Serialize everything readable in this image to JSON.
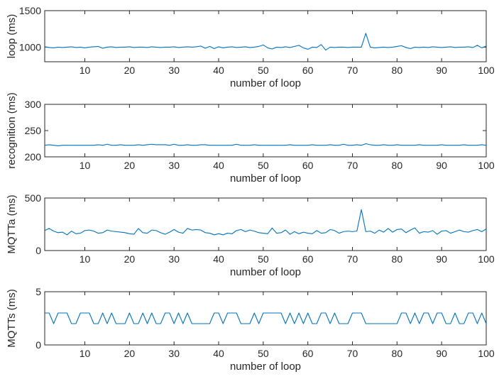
{
  "chart_data": [
    {
      "type": "line",
      "ylabel": "loop (ms)",
      "xlabel": "number of loop",
      "xlim": [
        1,
        100
      ],
      "ylim": [
        800,
        1500
      ],
      "yticks": [
        1000,
        1500
      ],
      "xticks": [
        10,
        20,
        30,
        40,
        50,
        60,
        70,
        80,
        90,
        100
      ],
      "grid": false,
      "color": "#0072BD",
      "series": [
        {
          "x": [
            1,
            2,
            3,
            4,
            5,
            6,
            7,
            8,
            9,
            10,
            11,
            12,
            13,
            14,
            15,
            16,
            17,
            18,
            19,
            20,
            21,
            22,
            23,
            24,
            25,
            26,
            27,
            28,
            29,
            30,
            31,
            32,
            33,
            34,
            35,
            36,
            37,
            38,
            39,
            40,
            41,
            42,
            43,
            44,
            45,
            46,
            47,
            48,
            49,
            50,
            51,
            52,
            53,
            54,
            55,
            56,
            57,
            58,
            59,
            60,
            61,
            62,
            63,
            64,
            65,
            66,
            67,
            68,
            69,
            70,
            71,
            72,
            73,
            74,
            75,
            76,
            77,
            78,
            79,
            80,
            81,
            82,
            83,
            84,
            85,
            86,
            87,
            88,
            89,
            90,
            91,
            92,
            93,
            94,
            95,
            96,
            97,
            98,
            99,
            100
          ],
          "values": [
            1005,
            995,
            990,
            1000,
            995,
            1000,
            1005,
            995,
            1000,
            990,
            1000,
            1005,
            1010,
            985,
            1000,
            1005,
            995,
            1000,
            1000,
            1005,
            995,
            1000,
            1000,
            995,
            1005,
            1000,
            995,
            1000,
            1000,
            1005,
            995,
            1000,
            1005,
            1000,
            1005,
            1015,
            985,
            1010,
            980,
            1005,
            990,
            1000,
            1005,
            995,
            1000,
            1005,
            995,
            1000,
            1010,
            1030,
            990,
            975,
            1000,
            995,
            1005,
            995,
            1010,
            1025,
            990,
            970,
            1000,
            995,
            1035,
            960,
            1000,
            995,
            1000,
            1000,
            995,
            1000,
            1000,
            1000,
            1190,
            1000,
            990,
            995,
            1000,
            995,
            1000,
            1010,
            1020,
            995,
            980,
            1000,
            995,
            1000,
            995,
            1005,
            1000,
            995,
            1000,
            1005,
            995,
            1000,
            1000,
            1005,
            995,
            1025,
            990,
            1015
          ]
        }
      ]
    },
    {
      "type": "line",
      "ylabel": "recognition (ms)",
      "xlabel": "number of loop",
      "xlim": [
        1,
        100
      ],
      "ylim": [
        200,
        300
      ],
      "yticks": [
        200,
        250,
        300
      ],
      "xticks": [
        10,
        20,
        30,
        40,
        50,
        60,
        70,
        80,
        90,
        100
      ],
      "grid": false,
      "color": "#0072BD",
      "series": [
        {
          "x": [
            1,
            2,
            3,
            4,
            5,
            6,
            7,
            8,
            9,
            10,
            11,
            12,
            13,
            14,
            15,
            16,
            17,
            18,
            19,
            20,
            21,
            22,
            23,
            24,
            25,
            26,
            27,
            28,
            29,
            30,
            31,
            32,
            33,
            34,
            35,
            36,
            37,
            38,
            39,
            40,
            41,
            42,
            43,
            44,
            45,
            46,
            47,
            48,
            49,
            50,
            51,
            52,
            53,
            54,
            55,
            56,
            57,
            58,
            59,
            60,
            61,
            62,
            63,
            64,
            65,
            66,
            67,
            68,
            69,
            70,
            71,
            72,
            73,
            74,
            75,
            76,
            77,
            78,
            79,
            80,
            81,
            82,
            83,
            84,
            85,
            86,
            87,
            88,
            89,
            90,
            91,
            92,
            93,
            94,
            95,
            96,
            97,
            98,
            99,
            100
          ],
          "values": [
            222,
            223,
            222,
            221,
            222,
            222,
            222,
            222,
            222,
            222,
            222,
            222,
            223,
            222,
            224,
            222,
            222,
            223,
            222,
            222,
            222,
            223,
            222,
            223,
            224,
            223,
            223,
            223,
            222,
            224,
            222,
            222,
            223,
            222,
            222,
            223,
            223,
            222,
            222,
            222,
            222,
            222,
            222,
            224,
            222,
            222,
            222,
            223,
            222,
            222,
            222,
            222,
            222,
            222,
            222,
            223,
            222,
            222,
            222,
            222,
            223,
            222,
            222,
            222,
            223,
            222,
            222,
            224,
            222,
            222,
            223,
            222,
            225,
            223,
            222,
            222,
            223,
            222,
            222,
            223,
            222,
            222,
            222,
            222,
            223,
            222,
            222,
            222,
            222,
            223,
            222,
            222,
            222,
            222,
            223,
            222,
            222,
            222,
            223,
            222
          ]
        }
      ]
    },
    {
      "type": "line",
      "ylabel": "MQTTa (ms)",
      "xlabel": "number of loop",
      "xlim": [
        1,
        100
      ],
      "ylim": [
        0,
        500
      ],
      "yticks": [
        0,
        500
      ],
      "xticks": [
        10,
        20,
        30,
        40,
        50,
        60,
        70,
        80,
        90,
        100
      ],
      "grid": false,
      "color": "#0072BD",
      "series": [
        {
          "x": [
            1,
            2,
            3,
            4,
            5,
            6,
            7,
            8,
            9,
            10,
            11,
            12,
            13,
            14,
            15,
            16,
            17,
            18,
            19,
            20,
            21,
            22,
            23,
            24,
            25,
            26,
            27,
            28,
            29,
            30,
            31,
            32,
            33,
            34,
            35,
            36,
            37,
            38,
            39,
            40,
            41,
            42,
            43,
            44,
            45,
            46,
            47,
            48,
            49,
            50,
            51,
            52,
            53,
            54,
            55,
            56,
            57,
            58,
            59,
            60,
            61,
            62,
            63,
            64,
            65,
            66,
            67,
            68,
            69,
            70,
            71,
            72,
            73,
            74,
            75,
            76,
            77,
            78,
            79,
            80,
            81,
            82,
            83,
            84,
            85,
            86,
            87,
            88,
            89,
            90,
            91,
            92,
            93,
            94,
            95,
            96,
            97,
            98,
            99,
            100
          ],
          "values": [
            190,
            210,
            185,
            170,
            175,
            150,
            185,
            160,
            165,
            190,
            195,
            185,
            165,
            170,
            195,
            185,
            180,
            175,
            170,
            160,
            155,
            210,
            170,
            165,
            195,
            190,
            170,
            155,
            175,
            200,
            175,
            165,
            210,
            195,
            200,
            195,
            170,
            165,
            150,
            160,
            150,
            165,
            160,
            190,
            200,
            180,
            195,
            185,
            170,
            165,
            160,
            215,
            165,
            170,
            195,
            155,
            180,
            160,
            175,
            165,
            160,
            190,
            165,
            170,
            200,
            190,
            165,
            180,
            185,
            180,
            185,
            390,
            180,
            185,
            165,
            195,
            175,
            210,
            175,
            200,
            205,
            170,
            195,
            215,
            165,
            180,
            175,
            190,
            155,
            185,
            190,
            165,
            180,
            195,
            180,
            175,
            190,
            200,
            180,
            205
          ]
        }
      ]
    },
    {
      "type": "line",
      "ylabel": "MQTTs (ms)",
      "xlabel": "number of loop",
      "xlim": [
        1,
        100
      ],
      "ylim": [
        0,
        5
      ],
      "yticks": [
        0,
        5
      ],
      "xticks": [
        10,
        20,
        30,
        40,
        50,
        60,
        70,
        80,
        90,
        100
      ],
      "grid": false,
      "color": "#0072BD",
      "series": [
        {
          "x": [
            1,
            2,
            3,
            4,
            5,
            6,
            7,
            8,
            9,
            10,
            11,
            12,
            13,
            14,
            15,
            16,
            17,
            18,
            19,
            20,
            21,
            22,
            23,
            24,
            25,
            26,
            27,
            28,
            29,
            30,
            31,
            32,
            33,
            34,
            35,
            36,
            37,
            38,
            39,
            40,
            41,
            42,
            43,
            44,
            45,
            46,
            47,
            48,
            49,
            50,
            51,
            52,
            53,
            54,
            55,
            56,
            57,
            58,
            59,
            60,
            61,
            62,
            63,
            64,
            65,
            66,
            67,
            68,
            69,
            70,
            71,
            72,
            73,
            74,
            75,
            76,
            77,
            78,
            79,
            80,
            81,
            82,
            83,
            84,
            85,
            86,
            87,
            88,
            89,
            90,
            91,
            92,
            93,
            94,
            95,
            96,
            97,
            98,
            99,
            100
          ],
          "values": [
            3,
            3,
            2,
            3,
            3,
            3,
            2,
            2,
            3,
            3,
            3,
            2,
            2,
            3,
            2,
            3,
            2,
            2,
            2,
            3,
            2,
            2,
            3,
            2,
            3,
            2,
            2,
            3,
            3,
            2,
            3,
            2,
            3,
            2,
            2,
            2,
            2,
            2,
            3,
            3,
            2,
            3,
            3,
            3,
            2,
            2,
            2,
            3,
            2,
            3,
            3,
            3,
            3,
            3,
            2,
            3,
            2,
            3,
            2,
            3,
            2,
            2,
            3,
            3,
            2,
            3,
            2,
            2,
            2,
            3,
            3,
            3,
            2,
            2,
            2,
            2,
            2,
            2,
            2,
            2,
            3,
            3,
            2,
            3,
            2,
            3,
            3,
            2,
            3,
            3,
            2,
            2,
            3,
            2,
            2,
            3,
            3,
            2,
            3,
            2
          ]
        }
      ]
    }
  ]
}
